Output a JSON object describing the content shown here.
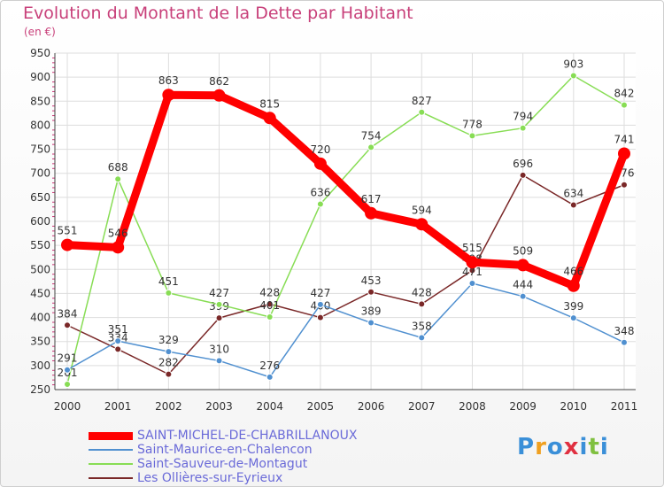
{
  "title": "Evolution du Montant de la Dette par Habitant",
  "subtitle": "(en €)",
  "logo": {
    "letters": [
      "P",
      "r",
      "o",
      "x",
      "i",
      "t",
      "i"
    ],
    "colors": [
      "#3a8fd8",
      "#f0a020",
      "#3a8fd8",
      "#e03040",
      "#3a8fd8",
      "#80c040",
      "#3a8fd8"
    ]
  },
  "chart_data": {
    "type": "line",
    "x": [
      "2000",
      "2001",
      "2002",
      "2003",
      "2004",
      "2005",
      "2006",
      "2007",
      "2008",
      "2009",
      "2010",
      "2011"
    ],
    "ylim": [
      250,
      950
    ],
    "yticks": [
      "250",
      "300",
      "350",
      "400",
      "450",
      "500",
      "550",
      "600",
      "650",
      "700",
      "750",
      "800",
      "850",
      "900",
      "950"
    ],
    "grid": true,
    "legend_position": "bottom-left",
    "series": [
      {
        "name": "SAINT-MICHEL-DE-CHABRILLANOUX",
        "color": "#ff0000",
        "values": [
          551,
          546,
          863,
          862,
          815,
          720,
          617,
          594,
          515,
          509,
          466,
          741
        ],
        "labels": [
          "551",
          "546",
          "863",
          "862",
          "815",
          "720",
          "617",
          "594",
          "515",
          "509",
          "466",
          "741"
        ]
      },
      {
        "name": "Saint-Maurice-en-Chalencon",
        "color": "#5090d0",
        "values": [
          291,
          351,
          329,
          310,
          276,
          427,
          389,
          358,
          471,
          444,
          399,
          348
        ],
        "labels": [
          "291",
          "351",
          "329",
          "310",
          "276",
          "427",
          "389",
          "358",
          "471",
          "444",
          "399",
          "348"
        ]
      },
      {
        "name": "Saint-Sauveur-de-Montagut",
        "color": "#88dd55",
        "values": [
          261,
          688,
          451,
          427,
          401,
          636,
          754,
          827,
          778,
          794,
          903,
          842
        ],
        "labels": [
          "261",
          "688",
          "451",
          "427",
          "401",
          "636",
          "754",
          "827",
          "778",
          "794",
          "903",
          "842"
        ]
      },
      {
        "name": "Les Ollières-sur-Eyrieux",
        "color": "#7a2828",
        "values": [
          384,
          334,
          282,
          399,
          428,
          400,
          453,
          428,
          498,
          696,
          634,
          676
        ],
        "labels": [
          "384",
          "334",
          "282",
          "399",
          "428",
          "400",
          "453",
          "428",
          "498",
          "696",
          "634",
          "676"
        ]
      }
    ]
  }
}
